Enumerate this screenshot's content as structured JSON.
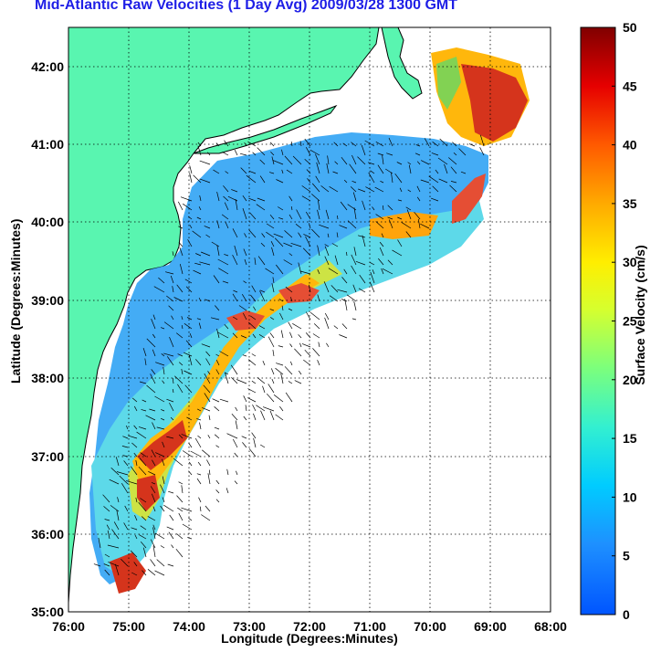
{
  "title": "Mid-Atlantic Raw Velocities (1 Day Avg) 2009/03/28 1300 GMT",
  "x_axis": {
    "label": "Longitude (Degrees:Minutes)",
    "ticks": [
      "76:00",
      "75:00",
      "74:00",
      "73:00",
      "72:00",
      "71:00",
      "70:00",
      "69:00",
      "68:00"
    ]
  },
  "y_axis": {
    "label": "Latitude (Degrees:Minutes)",
    "ticks": [
      "42:00",
      "41:00",
      "40:00",
      "39:00",
      "38:00",
      "37:00",
      "36:00",
      "35:00"
    ]
  },
  "colorbar": {
    "label": "Surface Velocity (cm/s)",
    "ticks": [
      "50",
      "45",
      "40",
      "35",
      "30",
      "25",
      "20",
      "15",
      "10",
      "5",
      "0"
    ],
    "range": [
      0,
      50
    ]
  },
  "map_extent": {
    "lon": [
      -76,
      -68
    ],
    "lat": [
      35,
      42.5
    ]
  },
  "colors": {
    "land": "#59f5b0",
    "title": "#1e1ee6",
    "grid": "#000000"
  }
}
